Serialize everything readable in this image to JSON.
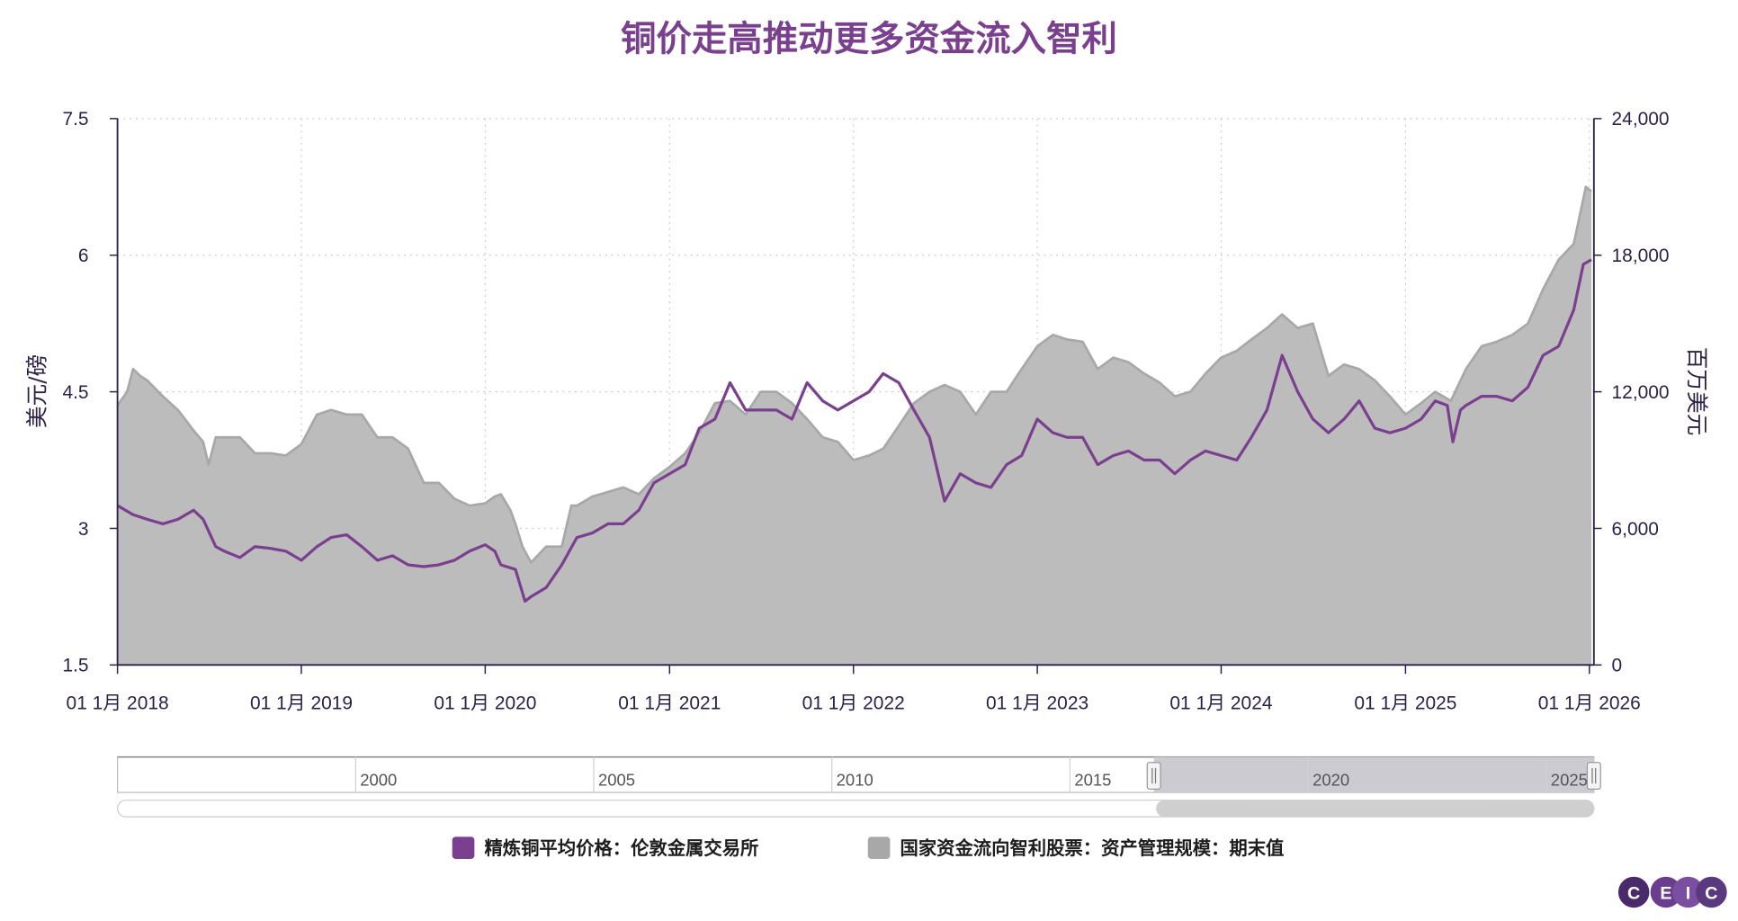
{
  "title": "铜价走高推动更多资金流入智利",
  "brand": "CEIC",
  "colors": {
    "copper": "#7b3f8f",
    "aum": "#a8a8a8",
    "aum_fill": "#bdbcbc",
    "title": "#7b3f8f",
    "axis": "#2c1f4a",
    "navigator_selected": "#cccbd2"
  },
  "chart_data": {
    "type": "area",
    "title": "铜价走高推动更多资金流入智利",
    "xlabel": "",
    "x_range": [
      "2018-01-01",
      "2026-01-10"
    ],
    "x_ticks": [
      "01 1月 2018",
      "01 1月 2019",
      "01 1月 2020",
      "01 1月 2021",
      "01 1月 2022",
      "01 1月 2023",
      "01 1月 2024",
      "01 1月 2025",
      "01 1月 2026"
    ],
    "grid": true,
    "legend_position": "bottom",
    "y_left": {
      "label": "美元/磅",
      "range": [
        1.5,
        7.5
      ],
      "ticks": [
        "1.5",
        "3",
        "4.5",
        "6",
        "7.5"
      ]
    },
    "y_right": {
      "label": "百万美元",
      "range": [
        0,
        24000
      ],
      "ticks": [
        "0",
        "6,000",
        "12,000",
        "18,000",
        "24,000"
      ]
    },
    "series": [
      {
        "name": "国家资金流向智利股票：资产管理规模：期末值",
        "axis": "right",
        "style": "area",
        "points": [
          [
            "2018-01-01",
            11400
          ],
          [
            "2018-01-20",
            12000
          ],
          [
            "2018-02-01",
            13000
          ],
          [
            "2018-02-15",
            12700
          ],
          [
            "2018-03-01",
            12500
          ],
          [
            "2018-04-01",
            11800
          ],
          [
            "2018-05-01",
            11200
          ],
          [
            "2018-06-01",
            10300
          ],
          [
            "2018-06-20",
            9800
          ],
          [
            "2018-07-01",
            8800
          ],
          [
            "2018-07-15",
            10000
          ],
          [
            "2018-08-01",
            10000
          ],
          [
            "2018-09-01",
            10000
          ],
          [
            "2018-10-01",
            9300
          ],
          [
            "2018-11-01",
            9300
          ],
          [
            "2018-12-01",
            9200
          ],
          [
            "2019-01-01",
            9700
          ],
          [
            "2019-02-01",
            11000
          ],
          [
            "2019-03-01",
            11200
          ],
          [
            "2019-04-01",
            11000
          ],
          [
            "2019-05-01",
            11000
          ],
          [
            "2019-06-01",
            10000
          ],
          [
            "2019-07-01",
            10000
          ],
          [
            "2019-08-01",
            9500
          ],
          [
            "2019-09-01",
            8000
          ],
          [
            "2019-10-01",
            8000
          ],
          [
            "2019-11-01",
            7300
          ],
          [
            "2019-12-01",
            7000
          ],
          [
            "2020-01-01",
            7100
          ],
          [
            "2020-01-20",
            7400
          ],
          [
            "2020-02-01",
            7500
          ],
          [
            "2020-02-20",
            6800
          ],
          [
            "2020-03-01",
            6200
          ],
          [
            "2020-03-15",
            5200
          ],
          [
            "2020-04-01",
            4500
          ],
          [
            "2020-05-01",
            5200
          ],
          [
            "2020-06-01",
            5200
          ],
          [
            "2020-06-20",
            7000
          ],
          [
            "2020-07-01",
            7000
          ],
          [
            "2020-08-01",
            7400
          ],
          [
            "2020-09-01",
            7600
          ],
          [
            "2020-10-01",
            7800
          ],
          [
            "2020-11-01",
            7500
          ],
          [
            "2020-12-01",
            8200
          ],
          [
            "2021-01-01",
            8700
          ],
          [
            "2021-02-01",
            9300
          ],
          [
            "2021-03-01",
            10200
          ],
          [
            "2021-04-01",
            11500
          ],
          [
            "2021-05-01",
            11600
          ],
          [
            "2021-06-01",
            11000
          ],
          [
            "2021-07-01",
            12000
          ],
          [
            "2021-08-01",
            12000
          ],
          [
            "2021-09-01",
            11500
          ],
          [
            "2021-10-01",
            10800
          ],
          [
            "2021-11-01",
            10000
          ],
          [
            "2021-12-01",
            9800
          ],
          [
            "2022-01-01",
            9000
          ],
          [
            "2022-02-01",
            9200
          ],
          [
            "2022-03-01",
            9500
          ],
          [
            "2022-04-01",
            10500
          ],
          [
            "2022-05-01",
            11500
          ],
          [
            "2022-06-01",
            12000
          ],
          [
            "2022-07-01",
            12300
          ],
          [
            "2022-08-01",
            12000
          ],
          [
            "2022-09-01",
            11000
          ],
          [
            "2022-10-01",
            12000
          ],
          [
            "2022-11-01",
            12000
          ],
          [
            "2022-12-01",
            13000
          ],
          [
            "2023-01-01",
            14000
          ],
          [
            "2023-02-01",
            14500
          ],
          [
            "2023-03-01",
            14300
          ],
          [
            "2023-04-01",
            14200
          ],
          [
            "2023-05-01",
            13000
          ],
          [
            "2023-06-01",
            13500
          ],
          [
            "2023-07-01",
            13300
          ],
          [
            "2023-08-01",
            12800
          ],
          [
            "2023-09-01",
            12400
          ],
          [
            "2023-10-01",
            11800
          ],
          [
            "2023-11-01",
            12000
          ],
          [
            "2023-12-01",
            12800
          ],
          [
            "2024-01-01",
            13500
          ],
          [
            "2024-02-01",
            13800
          ],
          [
            "2024-03-01",
            14300
          ],
          [
            "2024-04-01",
            14800
          ],
          [
            "2024-05-01",
            15400
          ],
          [
            "2024-06-01",
            14800
          ],
          [
            "2024-07-01",
            15000
          ],
          [
            "2024-08-01",
            12700
          ],
          [
            "2024-09-01",
            13200
          ],
          [
            "2024-10-01",
            13000
          ],
          [
            "2024-11-01",
            12500
          ],
          [
            "2024-12-01",
            11800
          ],
          [
            "2025-01-01",
            11000
          ],
          [
            "2025-02-01",
            11500
          ],
          [
            "2025-03-01",
            12000
          ],
          [
            "2025-04-01",
            11600
          ],
          [
            "2025-05-01",
            13000
          ],
          [
            "2025-06-01",
            14000
          ],
          [
            "2025-07-01",
            14200
          ],
          [
            "2025-08-01",
            14500
          ],
          [
            "2025-09-01",
            15000
          ],
          [
            "2025-10-01",
            16500
          ],
          [
            "2025-11-01",
            17800
          ],
          [
            "2025-12-01",
            18500
          ],
          [
            "2025-12-25",
            21000
          ],
          [
            "2026-01-05",
            20800
          ]
        ]
      },
      {
        "name": "精炼铜平均价格：伦敦金属交易所",
        "axis": "left",
        "style": "line",
        "points": [
          [
            "2018-01-01",
            3.25
          ],
          [
            "2018-02-01",
            3.15
          ],
          [
            "2018-03-01",
            3.1
          ],
          [
            "2018-04-01",
            3.05
          ],
          [
            "2018-05-01",
            3.1
          ],
          [
            "2018-06-01",
            3.2
          ],
          [
            "2018-06-20",
            3.1
          ],
          [
            "2018-07-15",
            2.8
          ],
          [
            "2018-08-01",
            2.75
          ],
          [
            "2018-09-01",
            2.68
          ],
          [
            "2018-10-01",
            2.8
          ],
          [
            "2018-11-01",
            2.78
          ],
          [
            "2018-12-01",
            2.75
          ],
          [
            "2019-01-01",
            2.65
          ],
          [
            "2019-02-01",
            2.8
          ],
          [
            "2019-03-01",
            2.9
          ],
          [
            "2019-04-01",
            2.93
          ],
          [
            "2019-05-01",
            2.8
          ],
          [
            "2019-06-01",
            2.65
          ],
          [
            "2019-07-01",
            2.7
          ],
          [
            "2019-08-01",
            2.6
          ],
          [
            "2019-09-01",
            2.58
          ],
          [
            "2019-10-01",
            2.6
          ],
          [
            "2019-11-01",
            2.65
          ],
          [
            "2019-12-01",
            2.75
          ],
          [
            "2020-01-01",
            2.82
          ],
          [
            "2020-01-20",
            2.75
          ],
          [
            "2020-02-01",
            2.6
          ],
          [
            "2020-03-01",
            2.55
          ],
          [
            "2020-03-20",
            2.2
          ],
          [
            "2020-04-01",
            2.25
          ],
          [
            "2020-05-01",
            2.35
          ],
          [
            "2020-06-01",
            2.6
          ],
          [
            "2020-07-01",
            2.9
          ],
          [
            "2020-08-01",
            2.95
          ],
          [
            "2020-09-01",
            3.05
          ],
          [
            "2020-10-01",
            3.05
          ],
          [
            "2020-11-01",
            3.2
          ],
          [
            "2020-12-01",
            3.5
          ],
          [
            "2021-01-01",
            3.6
          ],
          [
            "2021-02-01",
            3.7
          ],
          [
            "2021-03-01",
            4.1
          ],
          [
            "2021-04-01",
            4.2
          ],
          [
            "2021-05-01",
            4.6
          ],
          [
            "2021-06-01",
            4.3
          ],
          [
            "2021-07-01",
            4.3
          ],
          [
            "2021-08-01",
            4.3
          ],
          [
            "2021-09-01",
            4.2
          ],
          [
            "2021-10-01",
            4.6
          ],
          [
            "2021-11-01",
            4.4
          ],
          [
            "2021-12-01",
            4.3
          ],
          [
            "2022-01-01",
            4.4
          ],
          [
            "2022-02-01",
            4.5
          ],
          [
            "2022-03-01",
            4.7
          ],
          [
            "2022-04-01",
            4.6
          ],
          [
            "2022-05-01",
            4.3
          ],
          [
            "2022-06-01",
            4.0
          ],
          [
            "2022-07-01",
            3.3
          ],
          [
            "2022-08-01",
            3.6
          ],
          [
            "2022-09-01",
            3.5
          ],
          [
            "2022-10-01",
            3.45
          ],
          [
            "2022-11-01",
            3.7
          ],
          [
            "2022-12-01",
            3.8
          ],
          [
            "2023-01-01",
            4.2
          ],
          [
            "2023-02-01",
            4.05
          ],
          [
            "2023-03-01",
            4.0
          ],
          [
            "2023-04-01",
            4.0
          ],
          [
            "2023-05-01",
            3.7
          ],
          [
            "2023-06-01",
            3.8
          ],
          [
            "2023-07-01",
            3.85
          ],
          [
            "2023-08-01",
            3.75
          ],
          [
            "2023-09-01",
            3.75
          ],
          [
            "2023-10-01",
            3.6
          ],
          [
            "2023-11-01",
            3.75
          ],
          [
            "2023-12-01",
            3.85
          ],
          [
            "2024-01-01",
            3.8
          ],
          [
            "2024-02-01",
            3.75
          ],
          [
            "2024-03-01",
            4.0
          ],
          [
            "2024-04-01",
            4.3
          ],
          [
            "2024-05-01",
            4.9
          ],
          [
            "2024-06-01",
            4.5
          ],
          [
            "2024-07-01",
            4.2
          ],
          [
            "2024-08-01",
            4.05
          ],
          [
            "2024-09-01",
            4.2
          ],
          [
            "2024-10-01",
            4.4
          ],
          [
            "2024-11-01",
            4.1
          ],
          [
            "2024-12-01",
            4.05
          ],
          [
            "2025-01-01",
            4.1
          ],
          [
            "2025-02-01",
            4.2
          ],
          [
            "2025-03-01",
            4.4
          ],
          [
            "2025-03-25",
            4.35
          ],
          [
            "2025-04-05",
            3.95
          ],
          [
            "2025-04-20",
            4.3
          ],
          [
            "2025-05-01",
            4.35
          ],
          [
            "2025-06-01",
            4.45
          ],
          [
            "2025-07-01",
            4.45
          ],
          [
            "2025-08-01",
            4.4
          ],
          [
            "2025-09-01",
            4.55
          ],
          [
            "2025-10-01",
            4.9
          ],
          [
            "2025-11-01",
            5.0
          ],
          [
            "2025-12-01",
            5.4
          ],
          [
            "2025-12-20",
            5.9
          ],
          [
            "2026-01-05",
            5.95
          ]
        ]
      }
    ]
  },
  "navigator": {
    "labels": [
      "2000",
      "2005",
      "2010",
      "2015",
      "2020",
      "2025"
    ],
    "selection": [
      "2018-01-01",
      "2026-01-10"
    ]
  },
  "legend": [
    {
      "label": "精炼铜平均价格：伦敦金属交易所",
      "color": "#7b3f8f"
    },
    {
      "label": "国家资金流向智利股票：资产管理规模：期末值",
      "color": "#a8a8a8"
    }
  ]
}
